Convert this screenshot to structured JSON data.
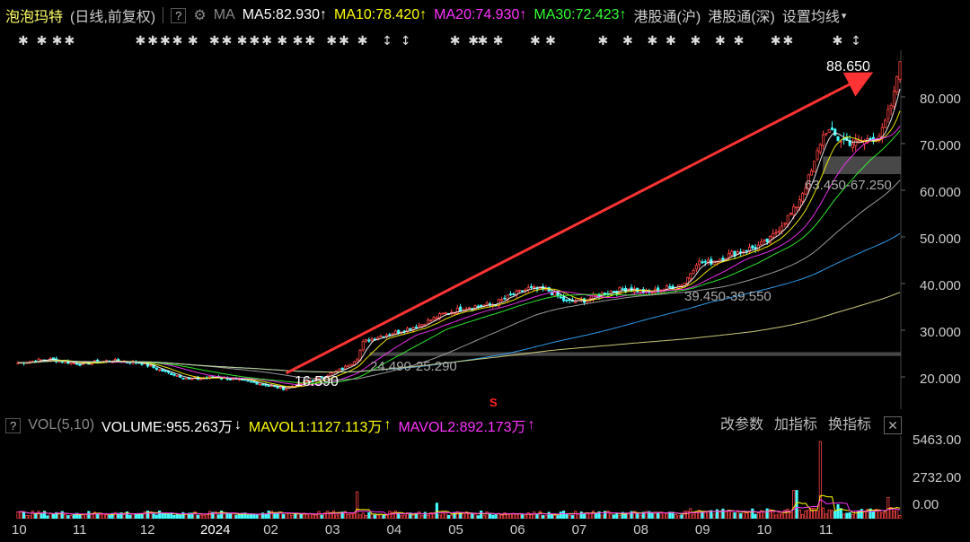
{
  "header": {
    "title": "泡泡玛特",
    "subtitle": "(日线,前复权)",
    "help": "?",
    "ma_label": "MA",
    "ma5": "MA5:82.930",
    "ma10": "MA10:78.420",
    "ma20": "MA20:74.930",
    "ma30": "MA30:72.423",
    "arrow_up": "↑",
    "link_hgt_sh": "港股通(沪)",
    "link_hgt_sz": "港股通(深)",
    "settings": "设置均线",
    "colors": {
      "ma5": "#ffffff",
      "ma10": "#ffff00",
      "ma20": "#ff33ff",
      "ma30": "#33ff33"
    }
  },
  "volume_header": {
    "help": "?",
    "vol_label": "VOL(5,10)",
    "volume": "VOLUME:955.263万",
    "down_arrow": "↓",
    "mavol1": "MAVOL1:1127.113万",
    "mavol2": "MAVOL2:892.173万",
    "up_arrow": "↑",
    "btn_params": "改参数",
    "btn_add": "加指标",
    "btn_switch": "换指标"
  },
  "chart_data": {
    "type": "candlestick",
    "y_ticks": [
      "80.000",
      "70.000",
      "60.000",
      "50.000",
      "40.000",
      "30.000",
      "20.000"
    ],
    "y_tick_values": [
      80,
      70,
      60,
      50,
      40,
      30,
      20
    ],
    "ylim": [
      17.5,
      93
    ],
    "x_labels": [
      "10",
      "11",
      "12",
      "2024",
      "02",
      "03",
      "04",
      "05",
      "06",
      "07",
      "08",
      "09",
      "10",
      "11"
    ],
    "x_label_pos": [
      0.02,
      1,
      2.1,
      3.2,
      4.1,
      5.1,
      6.1,
      7.1,
      8.1,
      9.1,
      10.1,
      11.1,
      12.1,
      13.1
    ],
    "months_span": [
      0,
      14.3
    ],
    "price_path": [
      [
        0,
        23
      ],
      [
        0.5,
        23.8
      ],
      [
        1,
        22.8
      ],
      [
        1.5,
        23.5
      ],
      [
        2,
        23
      ],
      [
        2.4,
        21
      ],
      [
        2.8,
        19.5
      ],
      [
        3.2,
        20
      ],
      [
        3.6,
        19.3
      ],
      [
        4,
        18.4
      ],
      [
        4.3,
        17.5
      ],
      [
        4.6,
        18.6
      ],
      [
        5.0,
        20.3
      ],
      [
        5.3,
        22
      ],
      [
        5.5,
        24
      ],
      [
        5.6,
        27.5
      ],
      [
        5.8,
        28.5
      ],
      [
        6.1,
        29.5
      ],
      [
        6.5,
        31
      ],
      [
        6.9,
        33.5
      ],
      [
        7.3,
        35
      ],
      [
        7.7,
        35.5
      ],
      [
        8,
        37.5
      ],
      [
        8.3,
        39
      ],
      [
        8.6,
        38.5
      ],
      [
        8.9,
        36
      ],
      [
        9.2,
        36.5
      ],
      [
        9.5,
        38
      ],
      [
        9.9,
        39
      ],
      [
        10.2,
        38
      ],
      [
        10.5,
        39
      ],
      [
        10.8,
        40
      ],
      [
        11,
        44.5
      ],
      [
        11.2,
        44.5
      ],
      [
        11.6,
        46.5
      ],
      [
        12,
        48
      ],
      [
        12.2,
        49.5
      ],
      [
        12.4,
        53
      ],
      [
        12.6,
        56
      ],
      [
        12.8,
        62
      ],
      [
        12.9,
        65
      ],
      [
        13.0,
        70
      ],
      [
        13.1,
        73
      ],
      [
        13.3,
        71
      ],
      [
        13.6,
        70
      ],
      [
        14.0,
        72
      ],
      [
        14.2,
        80
      ],
      [
        14.3,
        88.65
      ]
    ],
    "annotations": [
      {
        "label": "88.650",
        "kind": "high"
      },
      {
        "label": "16.590",
        "kind": "low"
      },
      {
        "label": "63.450-67.250",
        "kind": "gap"
      },
      {
        "label": "39.450-39.550",
        "kind": "gap"
      },
      {
        "label": "24.490-25.290",
        "kind": "gap"
      }
    ],
    "gap_zones": [
      [
        63.45,
        67.25
      ],
      [
        24.49,
        25.29
      ]
    ],
    "s_marker": "S",
    "volume_ticks": [
      "5463.00",
      "2732.00",
      "0.00"
    ],
    "volume_tick_values": [
      5463,
      2732,
      0
    ],
    "volume_spikes": [
      [
        5.5,
        1900
      ],
      [
        6.8,
        1100
      ],
      [
        12.6,
        2000
      ],
      [
        13.0,
        5463
      ],
      [
        13.3,
        1000
      ],
      [
        14.1,
        1500
      ]
    ]
  }
}
